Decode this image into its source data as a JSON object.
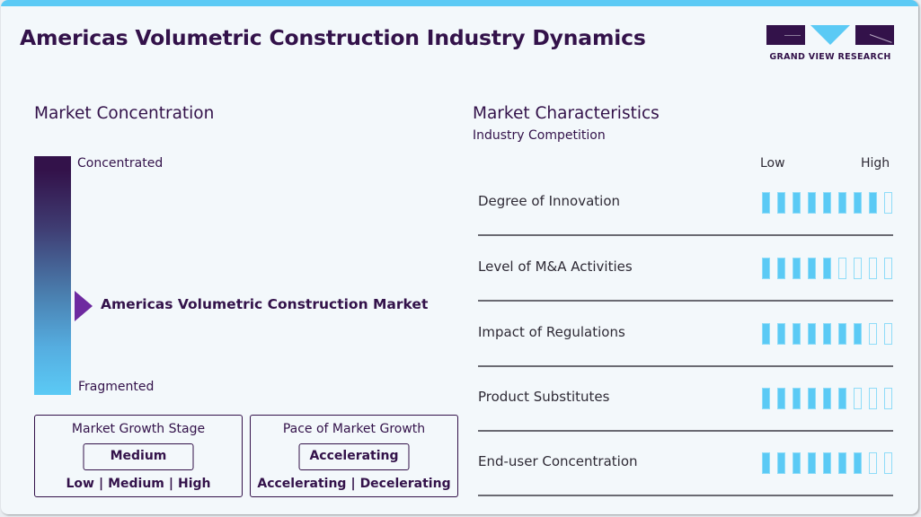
{
  "header": {
    "title": "Americas Volumetric Construction Industry Dynamics",
    "logo_text": "GRAND VIEW RESEARCH"
  },
  "colors": {
    "brand_dark": "#33124a",
    "accent": "#5bcaf5",
    "pointer": "#6e2aa0",
    "background": "#f3f8fb"
  },
  "market_concentration": {
    "heading": "Market Concentration",
    "top_label": "Concentrated",
    "bottom_label": "Fragmented",
    "marker_label": "Americas Volumetric Construction Market",
    "marker_position_pct": 62
  },
  "growth_stage": {
    "title": "Market Growth Stage",
    "value": "Medium",
    "options": [
      "Low",
      "Medium",
      "High"
    ]
  },
  "growth_pace": {
    "title": "Pace of Market Growth",
    "value": "Accelerating",
    "options": [
      "Accelerating",
      "Decelerating"
    ]
  },
  "market_characteristics": {
    "heading": "Market Characteristics",
    "subheading": "Industry Competition",
    "scale_low": "Low",
    "scale_high": "High",
    "max_segments": 9,
    "rows": [
      {
        "label": "Degree of Innovation",
        "filled": 8
      },
      {
        "label": "Level of M&A Activities",
        "filled": 5
      },
      {
        "label": "Impact of Regulations",
        "filled": 7
      },
      {
        "label": "Product Substitutes",
        "filled": 6
      },
      {
        "label": "End-user Concentration",
        "filled": 7
      }
    ]
  }
}
